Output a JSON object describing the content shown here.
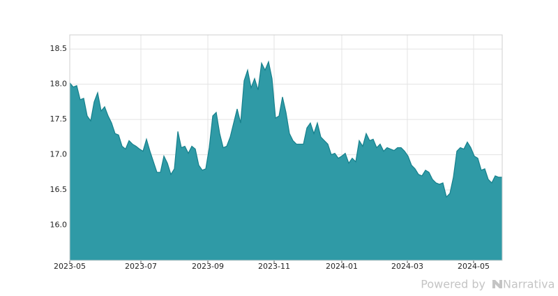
{
  "chart_data": {
    "type": "area",
    "color": "#2f9aa6",
    "line_color": "#16808c",
    "grid": true,
    "values": [
      18.02,
      17.96,
      17.98,
      17.78,
      17.8,
      17.55,
      17.48,
      17.75,
      17.88,
      17.62,
      17.68,
      17.55,
      17.45,
      17.3,
      17.28,
      17.12,
      17.08,
      17.2,
      17.15,
      17.12,
      17.08,
      17.05,
      17.22,
      17.05,
      16.9,
      16.75,
      16.75,
      16.98,
      16.88,
      16.72,
      16.8,
      17.33,
      17.1,
      17.12,
      17.02,
      17.12,
      17.08,
      16.85,
      16.78,
      16.8,
      17.1,
      17.55,
      17.6,
      17.3,
      17.1,
      17.12,
      17.25,
      17.45,
      17.65,
      17.45,
      18.05,
      18.2,
      17.95,
      18.08,
      17.92,
      18.3,
      18.2,
      18.32,
      18.08,
      17.52,
      17.55,
      17.82,
      17.6,
      17.3,
      17.2,
      17.15,
      17.15,
      17.15,
      17.38,
      17.45,
      17.3,
      17.45,
      17.25,
      17.2,
      17.15,
      17.0,
      17.02,
      16.95,
      16.98,
      17.02,
      16.88,
      16.95,
      16.9,
      17.2,
      17.12,
      17.3,
      17.2,
      17.22,
      17.1,
      17.15,
      17.05,
      17.1,
      17.08,
      17.06,
      17.1,
      17.1,
      17.05,
      16.98,
      16.85,
      16.8,
      16.72,
      16.7,
      16.78,
      16.75,
      16.65,
      16.6,
      16.58,
      16.6,
      16.4,
      16.45,
      16.68,
      17.05,
      17.1,
      17.08,
      17.18,
      17.1,
      16.98,
      16.95,
      16.78,
      16.8,
      16.65,
      16.6,
      16.7,
      16.68,
      16.68
    ],
    "xlim": [
      0,
      124
    ],
    "xticks": [
      {
        "value": 0,
        "label": "2023-05"
      },
      {
        "value": 20.4,
        "label": "2023-07"
      },
      {
        "value": 39.6,
        "label": "2023-09"
      },
      {
        "value": 58.6,
        "label": "2023-11"
      },
      {
        "value": 78,
        "label": "2024-01"
      },
      {
        "value": 96.8,
        "label": "2024-03"
      },
      {
        "value": 115.8,
        "label": "2024-05"
      }
    ],
    "ylim": [
      15.5,
      18.7
    ],
    "yticks": [
      {
        "value": 16,
        "label": "16.0"
      },
      16.5,
      {
        "value": 17,
        "label": "17.0"
      },
      17.5,
      {
        "value": 18,
        "label": "18.0"
      },
      18.5
    ]
  },
  "footer": {
    "prefix": "Powered by",
    "brand": "Narrativa"
  }
}
